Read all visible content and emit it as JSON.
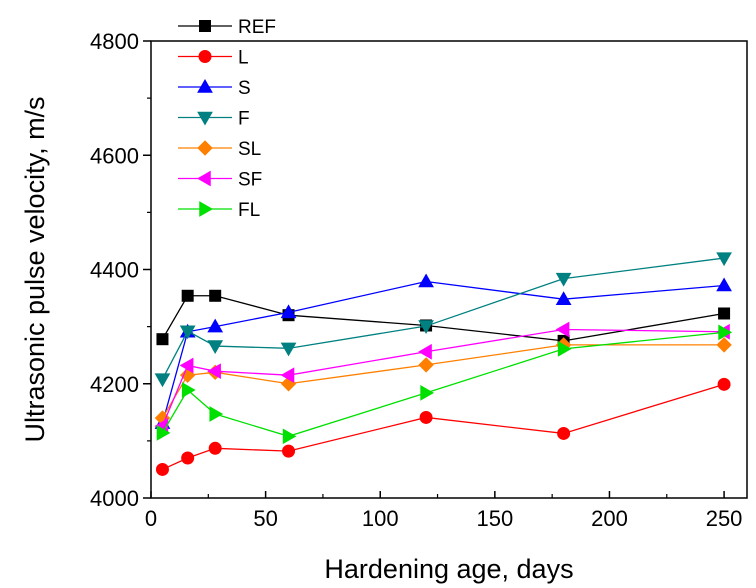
{
  "chart_data": {
    "type": "line",
    "xlabel": "Hardening age, days",
    "ylabel": "Ultrasonic pulse velocity, m/s",
    "xlim": [
      0,
      260
    ],
    "ylim": [
      4000,
      4800
    ],
    "xticks": [
      0,
      50,
      100,
      150,
      200,
      250
    ],
    "yticks": [
      4000,
      4200,
      4400,
      4600,
      4800
    ],
    "x": [
      5,
      16,
      28,
      60,
      120,
      180,
      250
    ],
    "legend_position": "top-left",
    "series": [
      {
        "name": "REF",
        "color": "#000000",
        "marker": "square",
        "values": [
          4278,
          4354,
          4354,
          4320,
          4302,
          4275,
          4323
        ]
      },
      {
        "name": "L",
        "color": "#ff0000",
        "marker": "circle",
        "values": [
          4050,
          4070,
          4087,
          4082,
          4141,
          4113,
          4199
        ]
      },
      {
        "name": "S",
        "color": "#0000ff",
        "marker": "triangle-up",
        "values": [
          4131,
          4291,
          4300,
          4325,
          4379,
          4348,
          4372
        ]
      },
      {
        "name": "F",
        "color": "#008080",
        "marker": "triangle-down",
        "values": [
          4208,
          4292,
          4266,
          4262,
          4301,
          4384,
          4420
        ]
      },
      {
        "name": "SL",
        "color": "#ff8000",
        "marker": "diamond",
        "values": [
          4140,
          4215,
          4220,
          4200,
          4233,
          4268,
          4268
        ]
      },
      {
        "name": "SF",
        "color": "#ff00ff",
        "marker": "triangle-left",
        "values": [
          4126,
          4232,
          4222,
          4215,
          4256,
          4295,
          4291
        ]
      },
      {
        "name": "FL",
        "color": "#00e000",
        "marker": "triangle-right",
        "values": [
          4114,
          4189,
          4147,
          4108,
          4184,
          4261,
          4290
        ]
      }
    ]
  }
}
